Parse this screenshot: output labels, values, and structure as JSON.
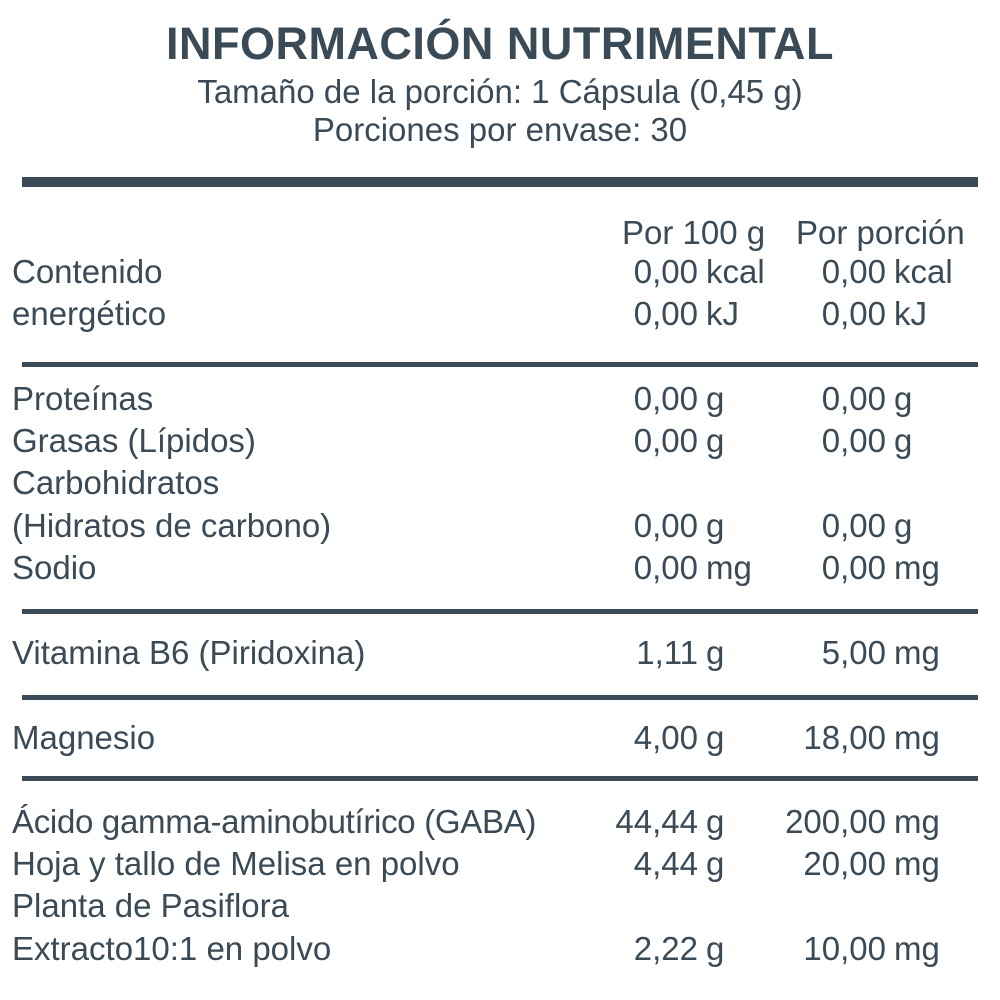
{
  "header": {
    "title": "INFORMACIÓN NUTRIMENTAL",
    "serving_size": "Tamaño de la porción: 1 Cápsula (0,45 g)",
    "servings_per_container": "Porciones por envase: 30"
  },
  "columns": {
    "per100": "Por 100 g",
    "perServing": "Por porción"
  },
  "energy": {
    "label_line1": "Contenido",
    "label_line2": "energético",
    "kcal_100": "0,00",
    "kcal_unit": "kcal",
    "kcal_serv": "0,00",
    "kj_100": "0,00",
    "kj_unit": "kJ",
    "kj_serv": "0,00"
  },
  "macros": {
    "protein": {
      "label": "Proteínas",
      "v100": "0,00",
      "u100": "g",
      "vserv": "0,00",
      "userv": "g"
    },
    "fat": {
      "label": "Grasas (Lípidos)",
      "v100": "0,00",
      "u100": "g",
      "vserv": "0,00",
      "userv": "g"
    },
    "carbs": {
      "label_line1": "Carbohidratos",
      "label_line2": "(Hidratos de carbono)",
      "v100": "0,00",
      "u100": "g",
      "vserv": "0,00",
      "userv": "g"
    },
    "sodium": {
      "label": "Sodio",
      "v100": "0,00",
      "u100": "mg",
      "vserv": "0,00",
      "userv": "mg"
    }
  },
  "vitamin": {
    "label": "Vitamina B6 (Piridoxina)",
    "v100": "1,11",
    "u100": "g",
    "vserv": "5,00",
    "userv": "mg"
  },
  "mineral": {
    "label": "Magnesio",
    "v100": "4,00",
    "u100": "g",
    "vserv": "18,00",
    "userv": "mg"
  },
  "actives": {
    "gaba": {
      "label": "Ácido gamma-aminobutírico (GABA)",
      "v100": "44,44",
      "u100": "g",
      "vserv": "200,00",
      "userv": "mg"
    },
    "melisa": {
      "label": "Hoja y tallo de Melisa en polvo",
      "v100": "4,44",
      "u100": "g",
      "vserv": "20,00",
      "userv": "mg"
    },
    "pasiflora": {
      "label_line1": "Planta de Pasiflora",
      "label_line2": "Extracto10:1 en polvo",
      "v100": "2,22",
      "u100": "g",
      "vserv": "10,00",
      "userv": "mg"
    }
  }
}
